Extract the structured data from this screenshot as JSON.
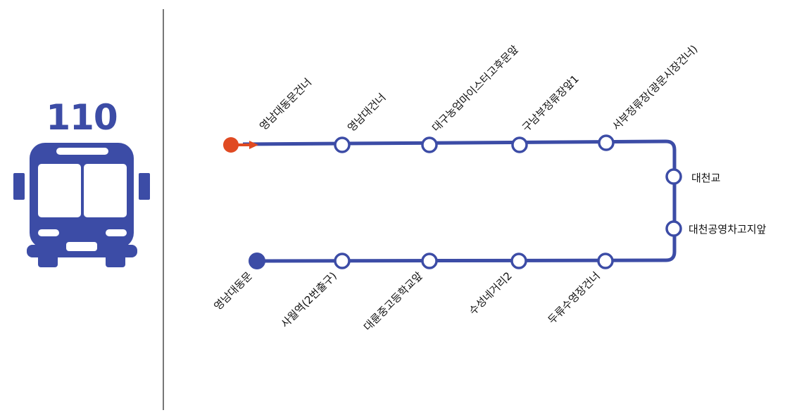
{
  "route": {
    "number": "110",
    "colors": {
      "line": "#3c4ca6",
      "start": "#e04a22",
      "end": "#3c4ca6",
      "stop_fill": "#ffffff"
    }
  },
  "stops": {
    "start": "영남대동문건너",
    "top": [
      "영남대건너",
      "대구농업마이스터고후문앞",
      "구남부정류장앞1",
      "서부정류장(광문시장건너)"
    ],
    "right": [
      "대천교",
      "대천공영차고지앞"
    ],
    "bottom": [
      "두류수영장건너",
      "수성네거리2",
      "대륜중고등학교앞",
      "사월역(2번출구)"
    ],
    "end": "영남대동문"
  }
}
